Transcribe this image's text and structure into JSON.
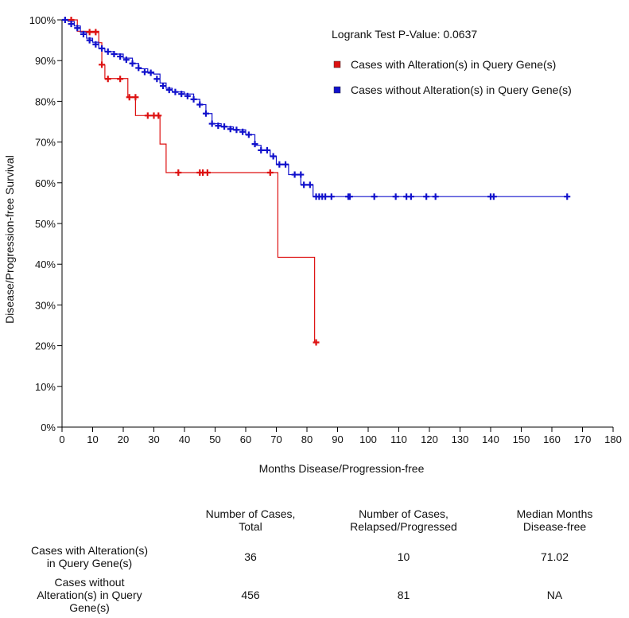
{
  "chart_data": {
    "type": "line",
    "subtype": "kaplan-meier",
    "title": "",
    "xlabel": "Months Disease/Progression-free",
    "ylabel": "Disease/Progression-free Survival",
    "xlim": [
      0,
      180
    ],
    "ylim": [
      0,
      100
    ],
    "x_ticks": [
      0,
      10,
      20,
      30,
      40,
      50,
      60,
      70,
      80,
      90,
      100,
      110,
      120,
      130,
      140,
      150,
      160,
      170,
      180
    ],
    "y_ticks": [
      0,
      10,
      20,
      30,
      40,
      50,
      60,
      70,
      80,
      90,
      100
    ],
    "y_tick_labels": [
      "0%",
      "10%",
      "20%",
      "30%",
      "40%",
      "50%",
      "60%",
      "70%",
      "80%",
      "90%",
      "100%"
    ],
    "annotation": "Logrank Test P-Value: 0.0637",
    "legend": [
      {
        "name": "Cases with Alteration(s) in Query Gene(s)",
        "color": "#dd1111"
      },
      {
        "name": "Cases without Alteration(s) in Query Gene(s)",
        "color": "#1111cc"
      }
    ],
    "series": [
      {
        "name": "Cases with Alteration(s) in Query Gene(s)",
        "color": "#dd1111",
        "steps": [
          [
            0,
            100
          ],
          [
            3,
            100
          ],
          [
            5,
            97.2
          ],
          [
            12,
            97.2
          ],
          [
            12,
            94.4
          ],
          [
            13,
            94.4
          ],
          [
            13,
            88.9
          ],
          [
            14,
            88.9
          ],
          [
            14,
            85.6
          ],
          [
            21.5,
            85.6
          ],
          [
            21.5,
            81
          ],
          [
            24,
            81
          ],
          [
            24,
            76.5
          ],
          [
            32,
            76.5
          ],
          [
            32,
            69.5
          ],
          [
            34,
            69.5
          ],
          [
            34,
            62.5
          ],
          [
            70.5,
            62.5
          ],
          [
            70.5,
            41.7
          ],
          [
            82.5,
            41.7
          ],
          [
            82.5,
            20.8
          ],
          [
            83,
            20.8
          ]
        ],
        "censored": [
          [
            3,
            100
          ],
          [
            9,
            97
          ],
          [
            11,
            97
          ],
          [
            13,
            89
          ],
          [
            15,
            85.5
          ],
          [
            19,
            85.5
          ],
          [
            22,
            81
          ],
          [
            24,
            81
          ],
          [
            28,
            76.5
          ],
          [
            30,
            76.5
          ],
          [
            31.5,
            76.5
          ],
          [
            38,
            62.5
          ],
          [
            45,
            62.5
          ],
          [
            46,
            62.5
          ],
          [
            47.5,
            62.5
          ],
          [
            68,
            62.5
          ],
          [
            83,
            20.8
          ]
        ]
      },
      {
        "name": "Cases without Alteration(s) in Query Gene(s)",
        "color": "#1111cc",
        "steps": [
          [
            0,
            100
          ],
          [
            2,
            99.6
          ],
          [
            4,
            98.5
          ],
          [
            6,
            97
          ],
          [
            8,
            95.5
          ],
          [
            10,
            94.5
          ],
          [
            12,
            93
          ],
          [
            14,
            92.2
          ],
          [
            17,
            91.6
          ],
          [
            20,
            90.6
          ],
          [
            23,
            89.3
          ],
          [
            25,
            88
          ],
          [
            28,
            87.2
          ],
          [
            30,
            86.7
          ],
          [
            32,
            84.5
          ],
          [
            34,
            83.2
          ],
          [
            36,
            82.3
          ],
          [
            40,
            81.8
          ],
          [
            43,
            80.5
          ],
          [
            45,
            79.2
          ],
          [
            47,
            77
          ],
          [
            49,
            74.5
          ],
          [
            52,
            73.7
          ],
          [
            56,
            73
          ],
          [
            60,
            71.8
          ],
          [
            63,
            69.2
          ],
          [
            65,
            68
          ],
          [
            68,
            66.5
          ],
          [
            70,
            64.5
          ],
          [
            74,
            64.5
          ],
          [
            74,
            62
          ],
          [
            78,
            62
          ],
          [
            78,
            59.5
          ],
          [
            80,
            59.5
          ],
          [
            82,
            56.6
          ],
          [
            165,
            56.6
          ]
        ],
        "censored": [
          [
            1,
            100
          ],
          [
            3,
            99
          ],
          [
            5,
            98
          ],
          [
            7,
            96.5
          ],
          [
            9,
            95
          ],
          [
            11,
            94
          ],
          [
            13,
            93
          ],
          [
            15,
            92.2
          ],
          [
            17,
            91.6
          ],
          [
            19,
            91
          ],
          [
            21,
            90.2
          ],
          [
            23,
            89.3
          ],
          [
            25,
            88.2
          ],
          [
            27,
            87.2
          ],
          [
            29,
            87
          ],
          [
            31,
            85.5
          ],
          [
            33,
            83.8
          ],
          [
            35,
            82.8
          ],
          [
            37,
            82.3
          ],
          [
            39,
            81.8
          ],
          [
            41,
            81.3
          ],
          [
            43,
            80.5
          ],
          [
            45,
            79.2
          ],
          [
            47,
            77
          ],
          [
            49,
            74.5
          ],
          [
            51,
            74
          ],
          [
            53,
            73.8
          ],
          [
            55,
            73.2
          ],
          [
            57,
            73
          ],
          [
            59,
            72.5
          ],
          [
            61,
            71.8
          ],
          [
            63,
            69.5
          ],
          [
            65,
            68
          ],
          [
            67,
            68
          ],
          [
            69,
            66.5
          ],
          [
            71,
            64.5
          ],
          [
            73,
            64.5
          ],
          [
            76,
            62
          ],
          [
            78,
            62
          ],
          [
            79,
            59.5
          ],
          [
            81,
            59.5
          ],
          [
            83,
            56.6
          ],
          [
            84,
            56.6
          ],
          [
            85,
            56.6
          ],
          [
            86,
            56.6
          ],
          [
            88,
            56.6
          ],
          [
            93.5,
            56.6
          ],
          [
            94,
            56.6
          ],
          [
            102,
            56.6
          ],
          [
            109,
            56.6
          ],
          [
            112.5,
            56.6
          ],
          [
            114,
            56.6
          ],
          [
            119,
            56.6
          ],
          [
            122,
            56.6
          ],
          [
            140,
            56.6
          ],
          [
            141,
            56.6
          ],
          [
            165,
            56.6
          ]
        ]
      }
    ]
  },
  "summary_table": {
    "headers": [
      "",
      "Number of Cases,\nTotal",
      "Number of Cases,\nRelapsed/Progressed",
      "Median Months\nDisease-free"
    ],
    "rows": [
      {
        "label": "Cases with Alteration(s)\nin Query Gene(s)",
        "total": "36",
        "relapsed": "10",
        "median": "71.02"
      },
      {
        "label": "Cases without\nAlteration(s) in Query\nGene(s)",
        "total": "456",
        "relapsed": "81",
        "median": "NA"
      }
    ]
  }
}
